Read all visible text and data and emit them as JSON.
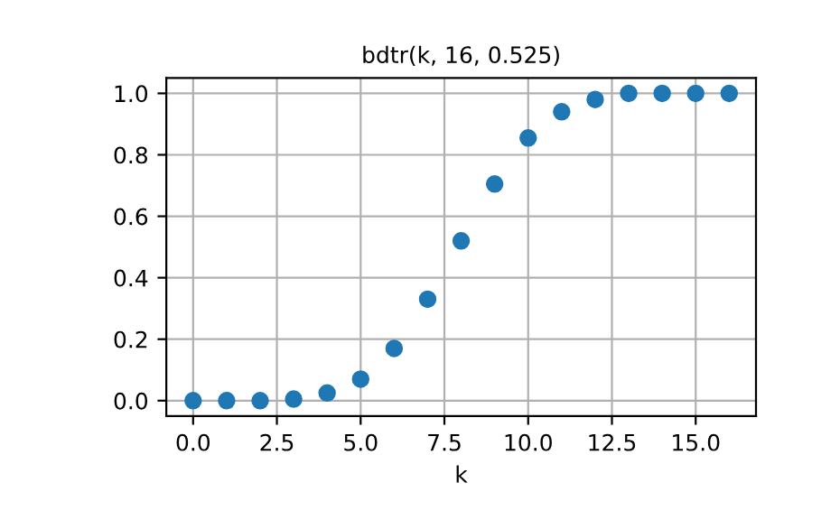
{
  "chart_data": {
    "type": "scatter",
    "title": "bdtr(k, 16, 0.525)",
    "xlabel": "k",
    "x": [
      0,
      1,
      2,
      3,
      4,
      5,
      6,
      7,
      8,
      9,
      10,
      11,
      12,
      13,
      14,
      15,
      16
    ],
    "series": [
      {
        "color": "#1f77b4",
        "values": [
          0.0,
          0.0,
          0.0,
          0.005,
          0.025,
          0.07,
          0.17,
          0.33,
          0.52,
          0.705,
          0.855,
          0.94,
          0.98,
          1.0,
          1.0,
          1.0,
          1.0
        ]
      }
    ],
    "xlim": [
      -0.8,
      16.8
    ],
    "ylim": [
      -0.05,
      1.05
    ],
    "xticks": [
      {
        "value": 0,
        "label": "0.0"
      },
      {
        "value": 2.5,
        "label": "2.5"
      },
      {
        "value": 5,
        "label": "5.0"
      },
      {
        "value": 7.5,
        "label": "7.5"
      },
      {
        "value": 10,
        "label": "10.0"
      },
      {
        "value": 12.5,
        "label": "12.5"
      },
      {
        "value": 15,
        "label": "15.0"
      }
    ],
    "yticks": [
      {
        "value": 0,
        "label": "0.0"
      },
      {
        "value": 0.2,
        "label": "0.2"
      },
      {
        "value": 0.4,
        "label": "0.4"
      },
      {
        "value": 0.6,
        "label": "0.6"
      },
      {
        "value": 0.8,
        "label": "0.8"
      },
      {
        "value": 1,
        "label": "1.0"
      }
    ],
    "grid": true,
    "marker": "circle"
  }
}
